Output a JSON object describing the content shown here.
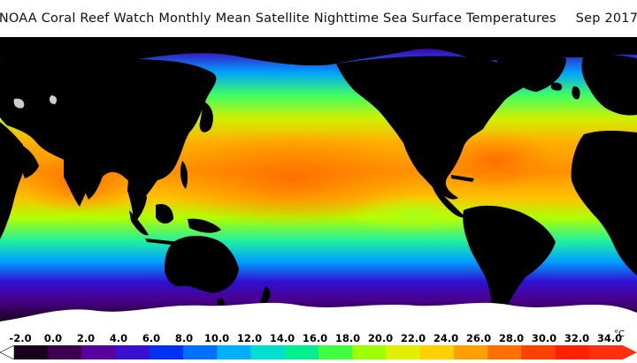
{
  "header": {
    "title": "NOAA Coral Reef Watch Monthly Mean Satellite Nighttime Sea Surface Temperatures",
    "date": "Sep 2017"
  },
  "legend": {
    "ticks": [
      "-2.0",
      "0.0",
      "2.0",
      "4.0",
      "6.0",
      "8.0",
      "10.0",
      "12.0",
      "14.0",
      "16.0",
      "18.0",
      "20.0",
      "22.0",
      "24.0",
      "26.0",
      "28.0",
      "30.0",
      "32.0",
      "34.0"
    ],
    "unit": "°C",
    "min_value": -2,
    "max_value": 34,
    "colors": [
      "#1a001a",
      "#3d0050",
      "#5a00a0",
      "#3a10d0",
      "#0030f0",
      "#0070ff",
      "#00b0ff",
      "#00e0d0",
      "#00f090",
      "#40ff40",
      "#a0ff00",
      "#e0f000",
      "#ffd000",
      "#ffa000",
      "#ff7000",
      "#ff4000",
      "#ff2000",
      "#ff3010"
    ]
  },
  "map": {
    "land_color": "#000000",
    "ice_color": "#ffffff",
    "projection": "equirectangular, Pacific-centered"
  }
}
